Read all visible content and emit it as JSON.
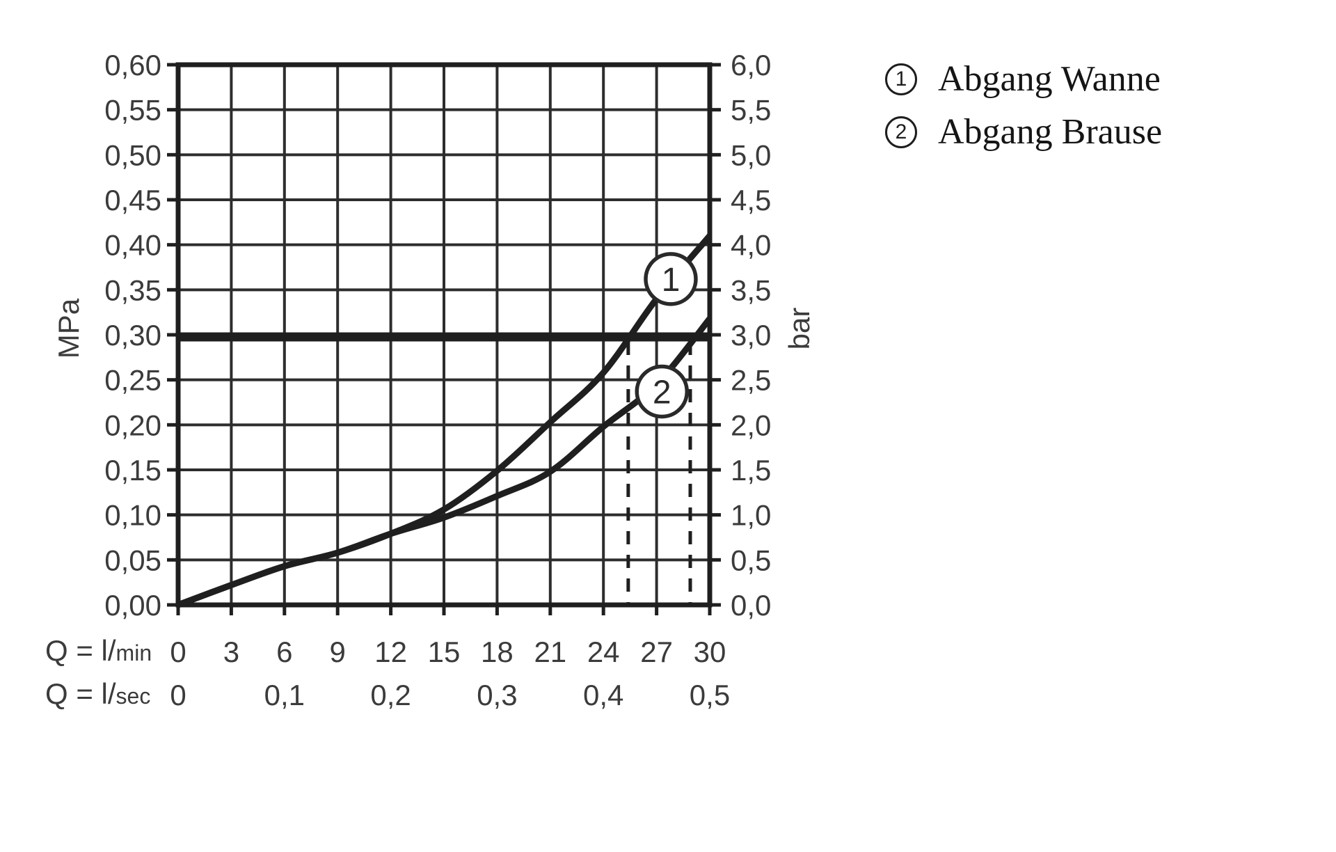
{
  "legend": {
    "items": [
      {
        "symbol": "1",
        "label": "Abgang Wanne"
      },
      {
        "symbol": "2",
        "label": "Abgang Brause"
      }
    ]
  },
  "chart_data": {
    "type": "line",
    "title": "",
    "y_left_unit": "MPa",
    "y_right_unit": "bar",
    "x_unit_primary": {
      "prefix": "Q = l/",
      "suffix": "min"
    },
    "x_unit_secondary": {
      "prefix": "Q = l/",
      "suffix": "sec"
    },
    "x_range_lmin": [
      0,
      30
    ],
    "grid_step_lmin": 3,
    "x_ticks_lmin": [
      "0",
      "3",
      "6",
      "9",
      "12",
      "15",
      "18",
      "21",
      "24",
      "27",
      "30"
    ],
    "x_ticks_lsec": {
      "labels": [
        "0",
        "0,1",
        "0,2",
        "0,3",
        "0,4",
        "0,5"
      ],
      "positions_lmin": [
        0,
        6,
        12,
        18,
        24,
        30
      ]
    },
    "y_left_range_mpa": [
      0,
      0.6
    ],
    "grid_step_mpa": 0.05,
    "y_left_ticks": [
      "0,00",
      "0,05",
      "0,10",
      "0,15",
      "0,20",
      "0,25",
      "0,30",
      "0,35",
      "0,40",
      "0,45",
      "0,50",
      "0,55",
      "0,60"
    ],
    "y_right_ticks": [
      "0,0",
      "0,5",
      "1,0",
      "1,5",
      "2,0",
      "2,5",
      "3,0",
      "3,5",
      "4,0",
      "4,5",
      "5,0",
      "5,5",
      "6,0"
    ],
    "reference_line_mpa": 0.3,
    "dashed_guides_lmin": [
      25.4,
      28.9
    ],
    "series": [
      {
        "name": "Abgang Wanne",
        "marker": "1",
        "marker_at": {
          "x": 27.8,
          "y": 0.362
        },
        "x": [
          0,
          3,
          6,
          9,
          12,
          15,
          18,
          21,
          24,
          27,
          30
        ],
        "y": [
          0,
          0.022,
          0.043,
          0.058,
          0.079,
          0.106,
          0.149,
          0.203,
          0.258,
          0.34,
          0.41
        ]
      },
      {
        "name": "Abgang Brause",
        "marker": "2",
        "marker_at": {
          "x": 27.3,
          "y": 0.237
        },
        "x": [
          0,
          3,
          6,
          9,
          12,
          15,
          18,
          21,
          24,
          27,
          30
        ],
        "y": [
          0,
          0.022,
          0.043,
          0.058,
          0.079,
          0.097,
          0.121,
          0.148,
          0.198,
          0.245,
          0.318
        ]
      }
    ],
    "colors": {
      "ink": "#1f1f1f",
      "grid": "#2d2d2d",
      "text": "#3b3b3b",
      "background": "#ffffff"
    }
  }
}
